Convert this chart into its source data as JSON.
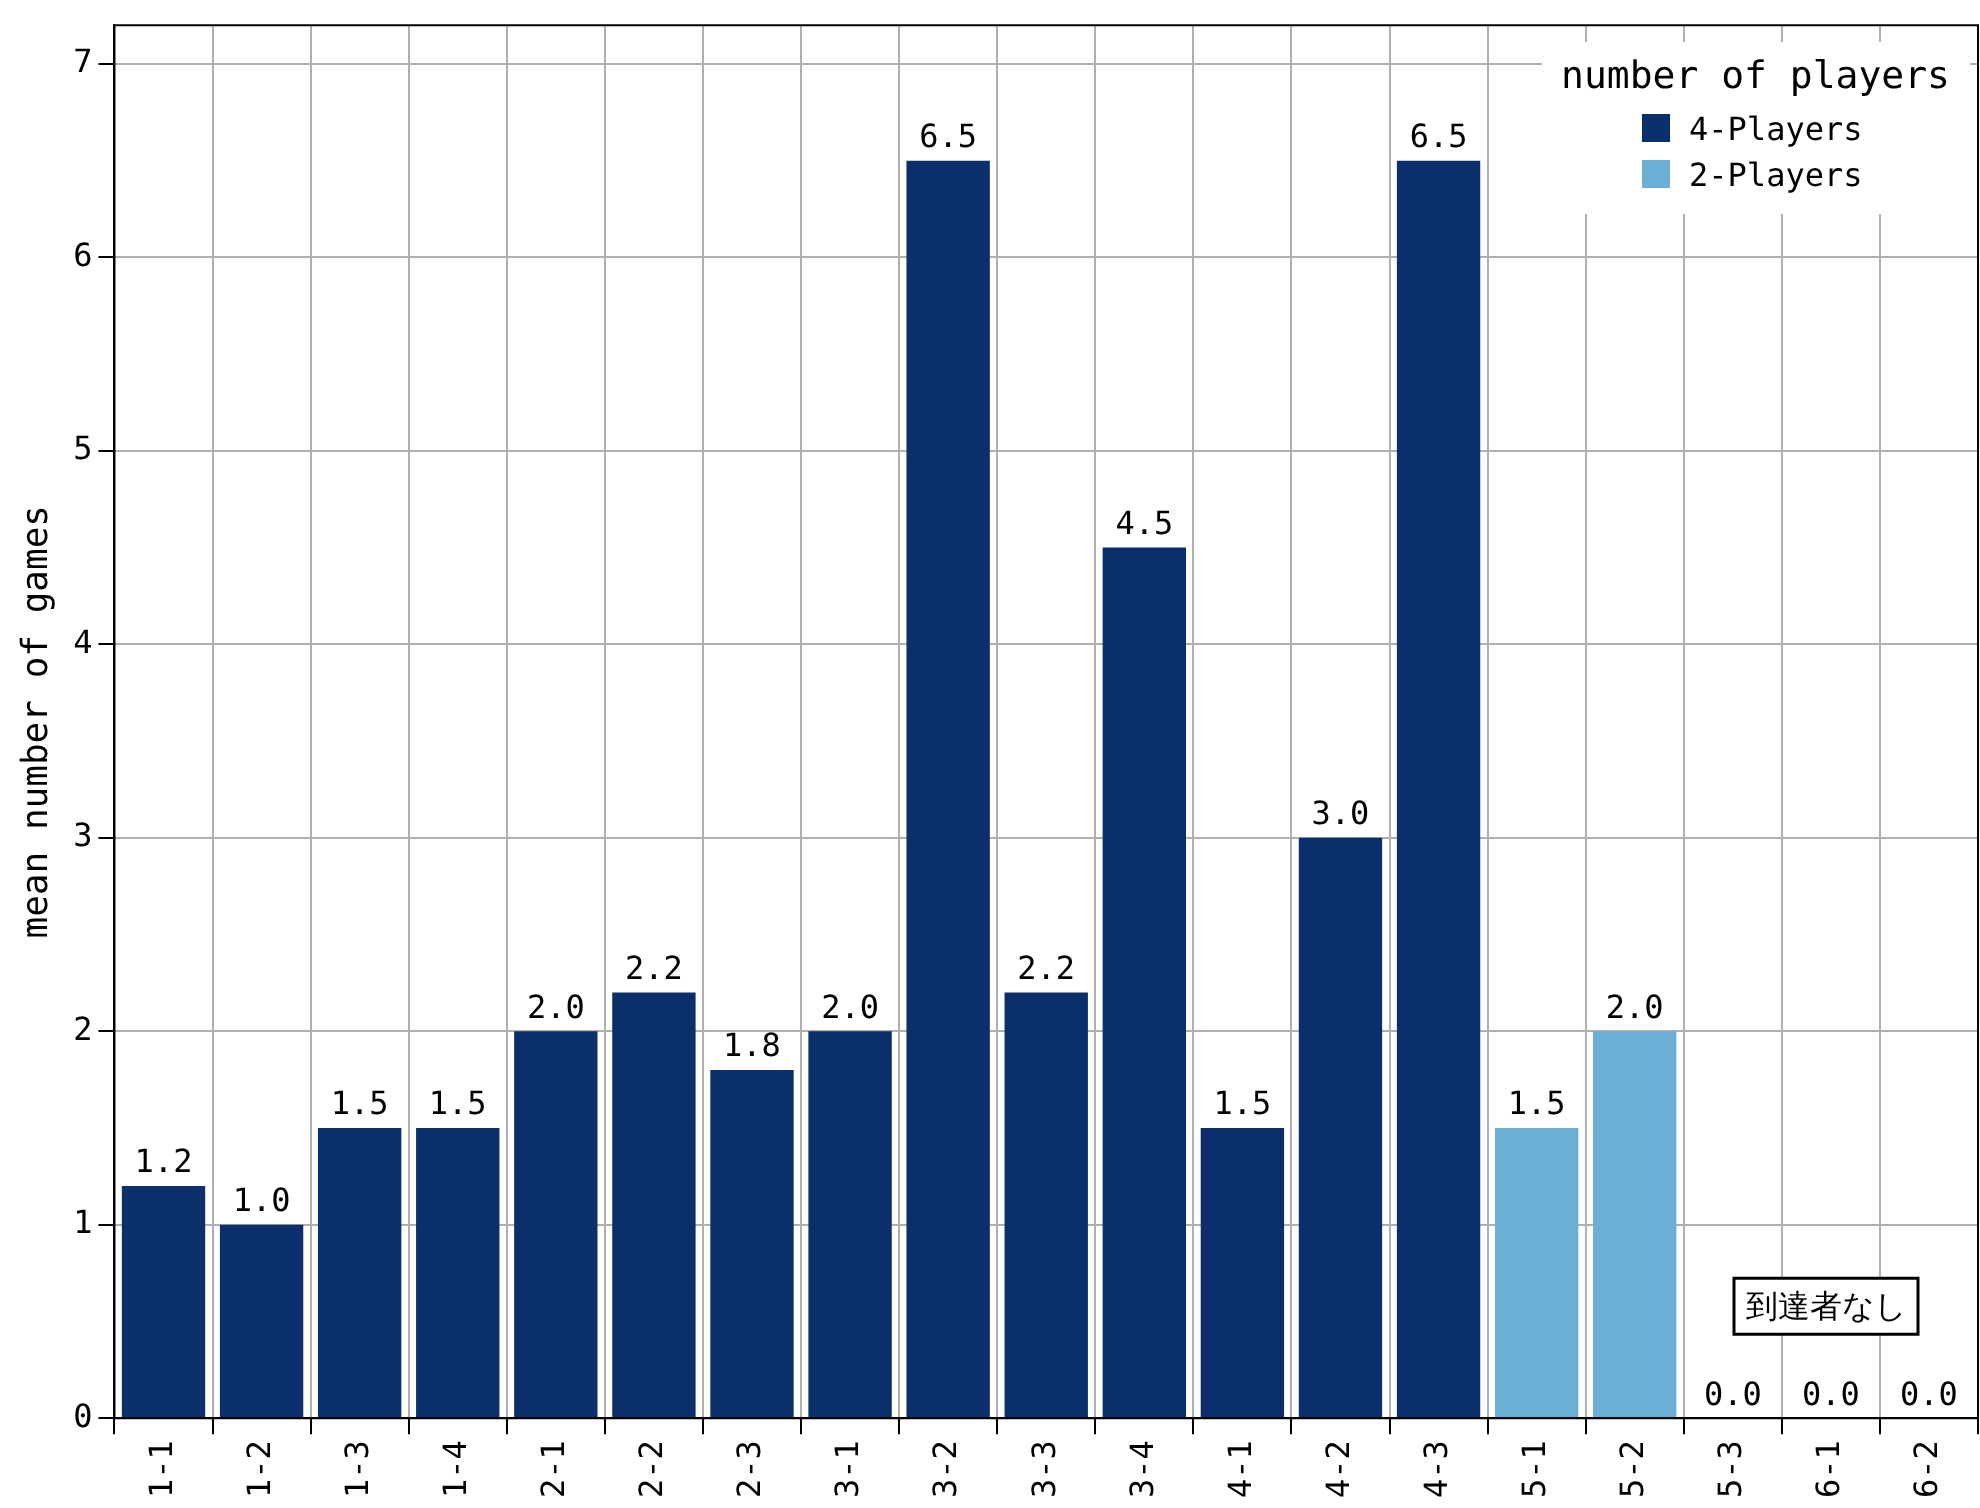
{
  "chart_data": {
    "type": "bar",
    "ylabel": "mean number of games",
    "legend_title": "number of players",
    "categories": [
      "1-1",
      "1-2",
      "1-3",
      "1-4",
      "2-1",
      "2-2",
      "2-3",
      "3-1",
      "3-2",
      "3-3",
      "3-4",
      "4-1",
      "4-2",
      "4-3",
      "5-1",
      "5-2",
      "5-3",
      "6-1",
      "6-2"
    ],
    "series": [
      {
        "name": "4-Players",
        "color": "#0a2f6b",
        "values": [
          1.2,
          1.0,
          1.5,
          1.5,
          2.0,
          2.2,
          1.8,
          2.0,
          6.5,
          2.2,
          4.5,
          1.5,
          3.0,
          6.5,
          null,
          null,
          null,
          null,
          null
        ],
        "value_labels": [
          "1.2",
          "1.0",
          "1.5",
          "1.5",
          "2.0",
          "2.2",
          "1.8",
          "2.0",
          "6.5",
          "2.2",
          "4.5",
          "1.5",
          "3.0",
          "6.5",
          null,
          null,
          null,
          null,
          null
        ]
      },
      {
        "name": "2-Players",
        "color": "#6baed6",
        "values": [
          null,
          null,
          null,
          null,
          null,
          null,
          null,
          null,
          null,
          null,
          null,
          null,
          null,
          null,
          1.5,
          2.0,
          0,
          0,
          0
        ],
        "value_labels": [
          null,
          null,
          null,
          null,
          null,
          null,
          null,
          null,
          null,
          null,
          null,
          null,
          null,
          null,
          "1.5",
          "2.0",
          "0.0",
          "0.0",
          "0.0"
        ]
      }
    ],
    "ylim": [
      0,
      7.2
    ],
    "yticks": [
      0,
      1,
      2,
      3,
      4,
      5,
      6,
      7
    ],
    "grid": true,
    "legend": "top right",
    "annotations": [
      "到達者なし"
    ]
  }
}
